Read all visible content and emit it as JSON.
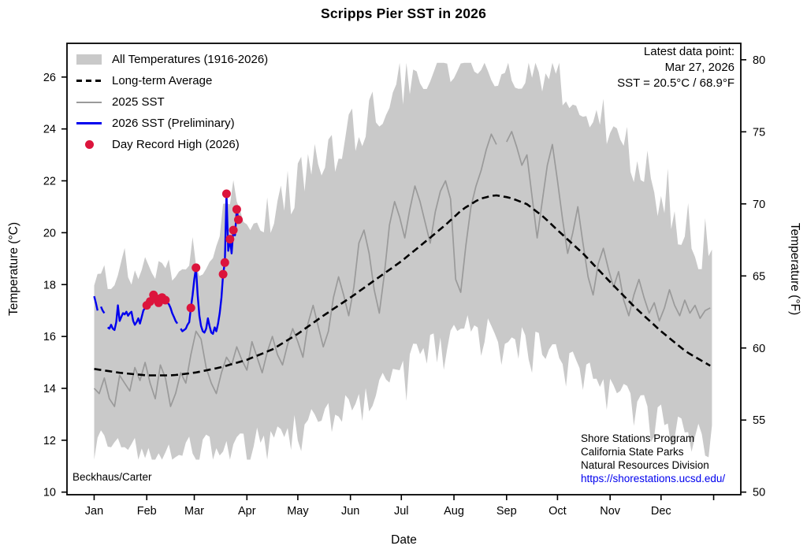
{
  "page": {
    "title": "Scripps Pier SST in 2026"
  },
  "annotations": {
    "latest": {
      "line1": "Latest data point:",
      "line2": "Mar 27, 2026",
      "line3": "SST = 20.5°C / 68.9°F"
    },
    "credit": "Beckhaus/Carter",
    "org_lines": [
      "Shore Stations Program",
      "California State Parks",
      "Natural Resources Division"
    ],
    "org_link": "https://shorestations.ucsd.edu/",
    "org_link_color": "#0000ee"
  },
  "chart_data": {
    "type": "line",
    "title": "Scripps Pier SST in 2026",
    "xlabel": "Date",
    "ylabel_left": "Temperature (°C)",
    "ylabel_right": "Temperature (°F)",
    "grid": false,
    "legend_position": "upper left",
    "x_unit": "day of year (Jan 1 = 0)",
    "xlim_days": [
      -16,
      381
    ],
    "ylim_c": [
      9.9,
      27.3
    ],
    "x_axis": {
      "tick_labels": [
        "Jan",
        "Feb",
        "Mar",
        "Apr",
        "May",
        "Jun",
        "Jul",
        "Aug",
        "Sep",
        "Oct",
        "Nov",
        "Dec"
      ],
      "tick_days": [
        0,
        31,
        59,
        90,
        120,
        151,
        181,
        212,
        243,
        273,
        304,
        334
      ],
      "end_tick_day": 365
    },
    "y_axis_left": {
      "ticks": [
        10,
        12,
        14,
        16,
        18,
        20,
        22,
        24,
        26
      ]
    },
    "y_axis_right": {
      "ticks": [
        50,
        55,
        60,
        65,
        70,
        75,
        80
      ]
    },
    "band": {
      "label": "All Temperatures (1916-2026)",
      "color": "#c9c9c9",
      "description": "min/max daily envelope 1916-2026, jagged daily texture",
      "max_anchors": {
        "d": [
          0,
          15,
          31,
          46,
          59,
          70,
          78,
          86,
          95,
          105,
          120,
          135,
          151,
          166,
          181,
          196,
          212,
          220,
          235,
          250,
          265,
          280,
          295,
          310,
          325,
          340,
          352,
          365
        ],
        "t": [
          18.1,
          18.3,
          18.5,
          18.2,
          18.7,
          18.9,
          21.3,
          21.0,
          19.9,
          20.4,
          21.2,
          22.3,
          23.2,
          24.3,
          25.3,
          25.9,
          26.3,
          26.45,
          26.1,
          25.9,
          25.7,
          24.9,
          24.3,
          23.0,
          21.7,
          20.2,
          19.3,
          18.4
        ]
      },
      "min_anchors": {
        "d": [
          0,
          15,
          31,
          46,
          59,
          78,
          95,
          120,
          135,
          151,
          166,
          181,
          196,
          212,
          227,
          243,
          258,
          273,
          288,
          310,
          325,
          340,
          352,
          365
        ],
        "t": [
          12.0,
          11.8,
          11.6,
          11.5,
          11.8,
          11.9,
          12.1,
          12.6,
          12.9,
          13.4,
          14.0,
          15.0,
          15.8,
          16.3,
          16.5,
          16.2,
          15.9,
          15.3,
          14.8,
          13.9,
          13.3,
          12.7,
          12.4,
          12.1
        ]
      }
    },
    "long_term_average": {
      "label": "Long-term Average",
      "color": "#000000",
      "style": "dashed",
      "d": [
        0,
        15,
        31,
        46,
        59,
        74,
        90,
        105,
        120,
        135,
        151,
        166,
        181,
        196,
        207,
        217,
        227,
        236,
        245,
        255,
        265,
        273,
        288,
        304,
        319,
        334,
        349,
        365
      ],
      "t": [
        14.75,
        14.6,
        14.5,
        14.5,
        14.6,
        14.8,
        15.1,
        15.5,
        16.1,
        16.8,
        17.5,
        18.2,
        18.9,
        19.7,
        20.3,
        20.9,
        21.3,
        21.45,
        21.35,
        21.1,
        20.6,
        20.1,
        19.2,
        18.1,
        17.1,
        16.2,
        15.4,
        14.8
      ]
    },
    "sst_2025": {
      "label": "2025 SST",
      "color": "#9a9a9a",
      "x_step_days": 3,
      "y": [
        14.0,
        13.8,
        14.4,
        13.6,
        13.3,
        14.5,
        14.2,
        13.9,
        14.8,
        14.3,
        15.0,
        14.2,
        13.6,
        14.9,
        14.4,
        13.3,
        13.8,
        14.6,
        14.2,
        15.3,
        16.2,
        15.9,
        14.8,
        14.2,
        13.8,
        14.6,
        15.2,
        14.9,
        15.6,
        15.1,
        14.7,
        15.8,
        15.2,
        14.6,
        15.4,
        16.0,
        15.3,
        14.9,
        15.7,
        16.3,
        15.8,
        15.2,
        16.5,
        17.2,
        16.4,
        15.6,
        16.2,
        17.5,
        18.3,
        17.6,
        16.8,
        17.9,
        19.6,
        20.1,
        19.2,
        17.8,
        16.9,
        18.4,
        20.3,
        21.2,
        20.6,
        19.8,
        20.9,
        21.8,
        21.2,
        20.4,
        19.6,
        20.8,
        21.6,
        22.0,
        21.3,
        18.2,
        17.7,
        19.5,
        21.0,
        21.8,
        22.4,
        23.2,
        23.8,
        23.4,
        null,
        23.5,
        23.9,
        23.3,
        22.6,
        23.0,
        21.4,
        19.8,
        21.2,
        22.6,
        23.4,
        22.0,
        20.5,
        19.2,
        20.0,
        21.0,
        19.6,
        18.3,
        17.6,
        18.8,
        19.4,
        18.6,
        17.9,
        18.5,
        17.4,
        16.8,
        17.6,
        18.2,
        17.5,
        16.9,
        17.3,
        16.6,
        17.1,
        17.8,
        17.2,
        16.8,
        17.4,
        16.9,
        17.2,
        16.7,
        17.0,
        17.1
      ]
    },
    "sst_2026": {
      "label": "2026 SST (Preliminary)",
      "color": "#0000ee",
      "x_step_days": 1,
      "first_day": 0,
      "y": [
        17.55,
        17.3,
        17.0,
        null,
        17.15,
        17.0,
        16.9,
        null,
        16.35,
        16.3,
        16.45,
        16.3,
        16.25,
        16.55,
        17.2,
        16.6,
        16.75,
        16.9,
        16.85,
        16.95,
        16.8,
        16.9,
        16.95,
        16.6,
        16.45,
        16.55,
        16.7,
        16.5,
        16.75,
        17.0,
        17.1,
        17.2,
        17.25,
        17.35,
        17.4,
        17.6,
        17.5,
        17.45,
        17.3,
        17.35,
        17.5,
        17.45,
        17.4,
        17.3,
        17.25,
        17.1,
        16.9,
        16.75,
        16.6,
        16.5,
        null,
        16.3,
        16.2,
        16.25,
        16.3,
        16.45,
        16.55,
        17.1,
        17.6,
        18.2,
        18.65,
        17.6,
        16.8,
        16.4,
        16.2,
        16.15,
        16.3,
        16.7,
        16.4,
        16.15,
        16.1,
        16.35,
        16.2,
        16.5,
        16.9,
        17.5,
        18.4,
        18.85,
        21.5,
        19.3,
        19.75,
        19.2,
        20.1,
        19.9,
        20.9,
        20.5
      ]
    },
    "record_highs_2026": {
      "label": "Day Record High (2026)",
      "color": "#dc143c",
      "days": [
        31,
        33,
        35,
        37,
        38,
        40,
        42,
        57,
        60,
        76,
        77,
        78,
        80,
        82,
        84,
        85
      ],
      "dates": [
        "Feb 1",
        "Feb 3",
        "Feb 5",
        "Feb 7",
        "Feb 8",
        "Feb 10",
        "Feb 12",
        "Feb 27",
        "Mar 2",
        "Mar 18",
        "Mar 19",
        "Mar 20",
        "Mar 22",
        "Mar 24",
        "Mar 26",
        "Mar 27"
      ],
      "temps_c": [
        17.2,
        17.35,
        17.6,
        17.45,
        17.3,
        17.5,
        17.4,
        17.1,
        18.65,
        18.4,
        18.85,
        21.5,
        19.75,
        20.1,
        20.9,
        20.5
      ]
    }
  }
}
